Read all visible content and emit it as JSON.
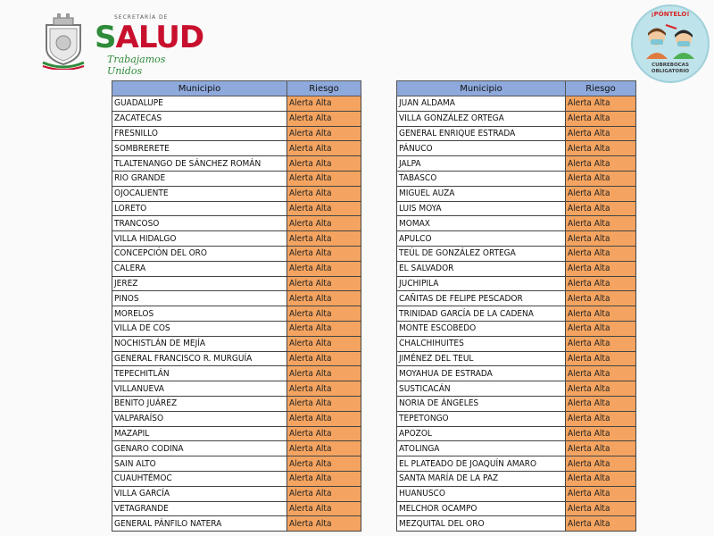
{
  "header": {
    "logo_small_text": "SECRETARÍA DE",
    "logo_main_a": "S",
    "logo_main_b": "ALUD",
    "logo_tagline": "Trabajamos Unidos",
    "badge_title": "¡PÓNTELO!",
    "badge_line1": "CUBREBOCAS",
    "badge_line2": "OBLIGATORIO"
  },
  "colors": {
    "risk_fill": "#f4a460",
    "header_fill": "#8ea9db",
    "logo_green": "#2e8b3a",
    "logo_red": "#c8102e"
  },
  "table_left": {
    "headers": [
      "Municipio",
      "Riesgo"
    ],
    "rows": [
      [
        "GUADALUPE",
        "Alerta Alta"
      ],
      [
        "ZACATECAS",
        "Alerta Alta"
      ],
      [
        "FRESNILLO",
        "Alerta Alta"
      ],
      [
        "SOMBRERETE",
        "Alerta Alta"
      ],
      [
        "TLALTENANGO DE SÁNCHEZ ROMÁN",
        "Alerta Alta"
      ],
      [
        "RIO GRANDE",
        "Alerta Alta"
      ],
      [
        "OJOCALIENTE",
        "Alerta Alta"
      ],
      [
        "LORETO",
        "Alerta Alta"
      ],
      [
        "TRANCOSO",
        "Alerta Alta"
      ],
      [
        "VILLA HIDALGO",
        "Alerta Alta"
      ],
      [
        "CONCEPCIÓN DEL ORO",
        "Alerta Alta"
      ],
      [
        "CALERA",
        "Alerta Alta"
      ],
      [
        "JEREZ",
        "Alerta Alta"
      ],
      [
        "PINOS",
        "Alerta Alta"
      ],
      [
        "MORELOS",
        "Alerta Alta"
      ],
      [
        "VILLA DE COS",
        "Alerta Alta"
      ],
      [
        "NOCHISTLÁN DE MEJÍA",
        "Alerta Alta"
      ],
      [
        "GENERAL FRANCISCO R. MURGUÍA",
        "Alerta Alta"
      ],
      [
        "TEPECHITLÁN",
        "Alerta Alta"
      ],
      [
        "VILLANUEVA",
        "Alerta Alta"
      ],
      [
        "BENITO JUÁREZ",
        "Alerta Alta"
      ],
      [
        "VALPARAÍSO",
        "Alerta Alta"
      ],
      [
        "MAZAPIL",
        "Alerta Alta"
      ],
      [
        "GENARO CODINA",
        "Alerta Alta"
      ],
      [
        "SAIN ALTO",
        "Alerta Alta"
      ],
      [
        "CUAUHTÉMOC",
        "Alerta Alta"
      ],
      [
        "VILLA GARCÍA",
        "Alerta Alta"
      ],
      [
        "VETAGRANDE",
        "Alerta Alta"
      ],
      [
        "GENERAL PÁNFILO NATERA",
        "Alerta Alta"
      ]
    ]
  },
  "table_right": {
    "headers": [
      "Municipio",
      "Riesgo"
    ],
    "rows": [
      [
        "JUAN ALDAMA",
        "Alerta Alta"
      ],
      [
        "VILLA GONZÁLEZ ORTEGA",
        "Alerta Alta"
      ],
      [
        "GENERAL ENRIQUE ESTRADA",
        "Alerta Alta"
      ],
      [
        "PÁNUCO",
        "Alerta Alta"
      ],
      [
        "JALPA",
        "Alerta Alta"
      ],
      [
        "TABASCO",
        "Alerta Alta"
      ],
      [
        "MIGUEL AUZA",
        "Alerta Alta"
      ],
      [
        "LUIS MOYA",
        "Alerta Alta"
      ],
      [
        "MOMAX",
        "Alerta Alta"
      ],
      [
        "APULCO",
        "Alerta Alta"
      ],
      [
        "TEÚL DE GONZÁLEZ ORTEGA",
        "Alerta Alta"
      ],
      [
        "EL SALVADOR",
        "Alerta Alta"
      ],
      [
        "JUCHIPILA",
        "Alerta Alta"
      ],
      [
        "CAÑITAS DE FELIPE PESCADOR",
        "Alerta Alta"
      ],
      [
        "TRINIDAD GARCÍA DE LA CADENA",
        "Alerta Alta"
      ],
      [
        "MONTE ESCOBEDO",
        "Alerta Alta"
      ],
      [
        "CHALCHIHUITES",
        "Alerta Alta"
      ],
      [
        "JIMÉNEZ DEL TEUL",
        "Alerta Alta"
      ],
      [
        "MOYAHUA DE ESTRADA",
        "Alerta Alta"
      ],
      [
        "SUSTICACÁN",
        "Alerta Alta"
      ],
      [
        "NORIA DE ÁNGELES",
        "Alerta Alta"
      ],
      [
        "TEPETONGO",
        "Alerta Alta"
      ],
      [
        "APOZOL",
        "Alerta Alta"
      ],
      [
        "ATOLINGA",
        "Alerta Alta"
      ],
      [
        "EL PLATEADO DE JOAQUÍN AMARO",
        "Alerta Alta"
      ],
      [
        "SANTA MARÍA DE LA PAZ",
        "Alerta Alta"
      ],
      [
        "HUANUSCO",
        "Alerta Alta"
      ],
      [
        "MELCHOR OCAMPO",
        "Alerta Alta"
      ],
      [
        "MEZQUITAL DEL ORO",
        "Alerta Alta"
      ]
    ]
  }
}
